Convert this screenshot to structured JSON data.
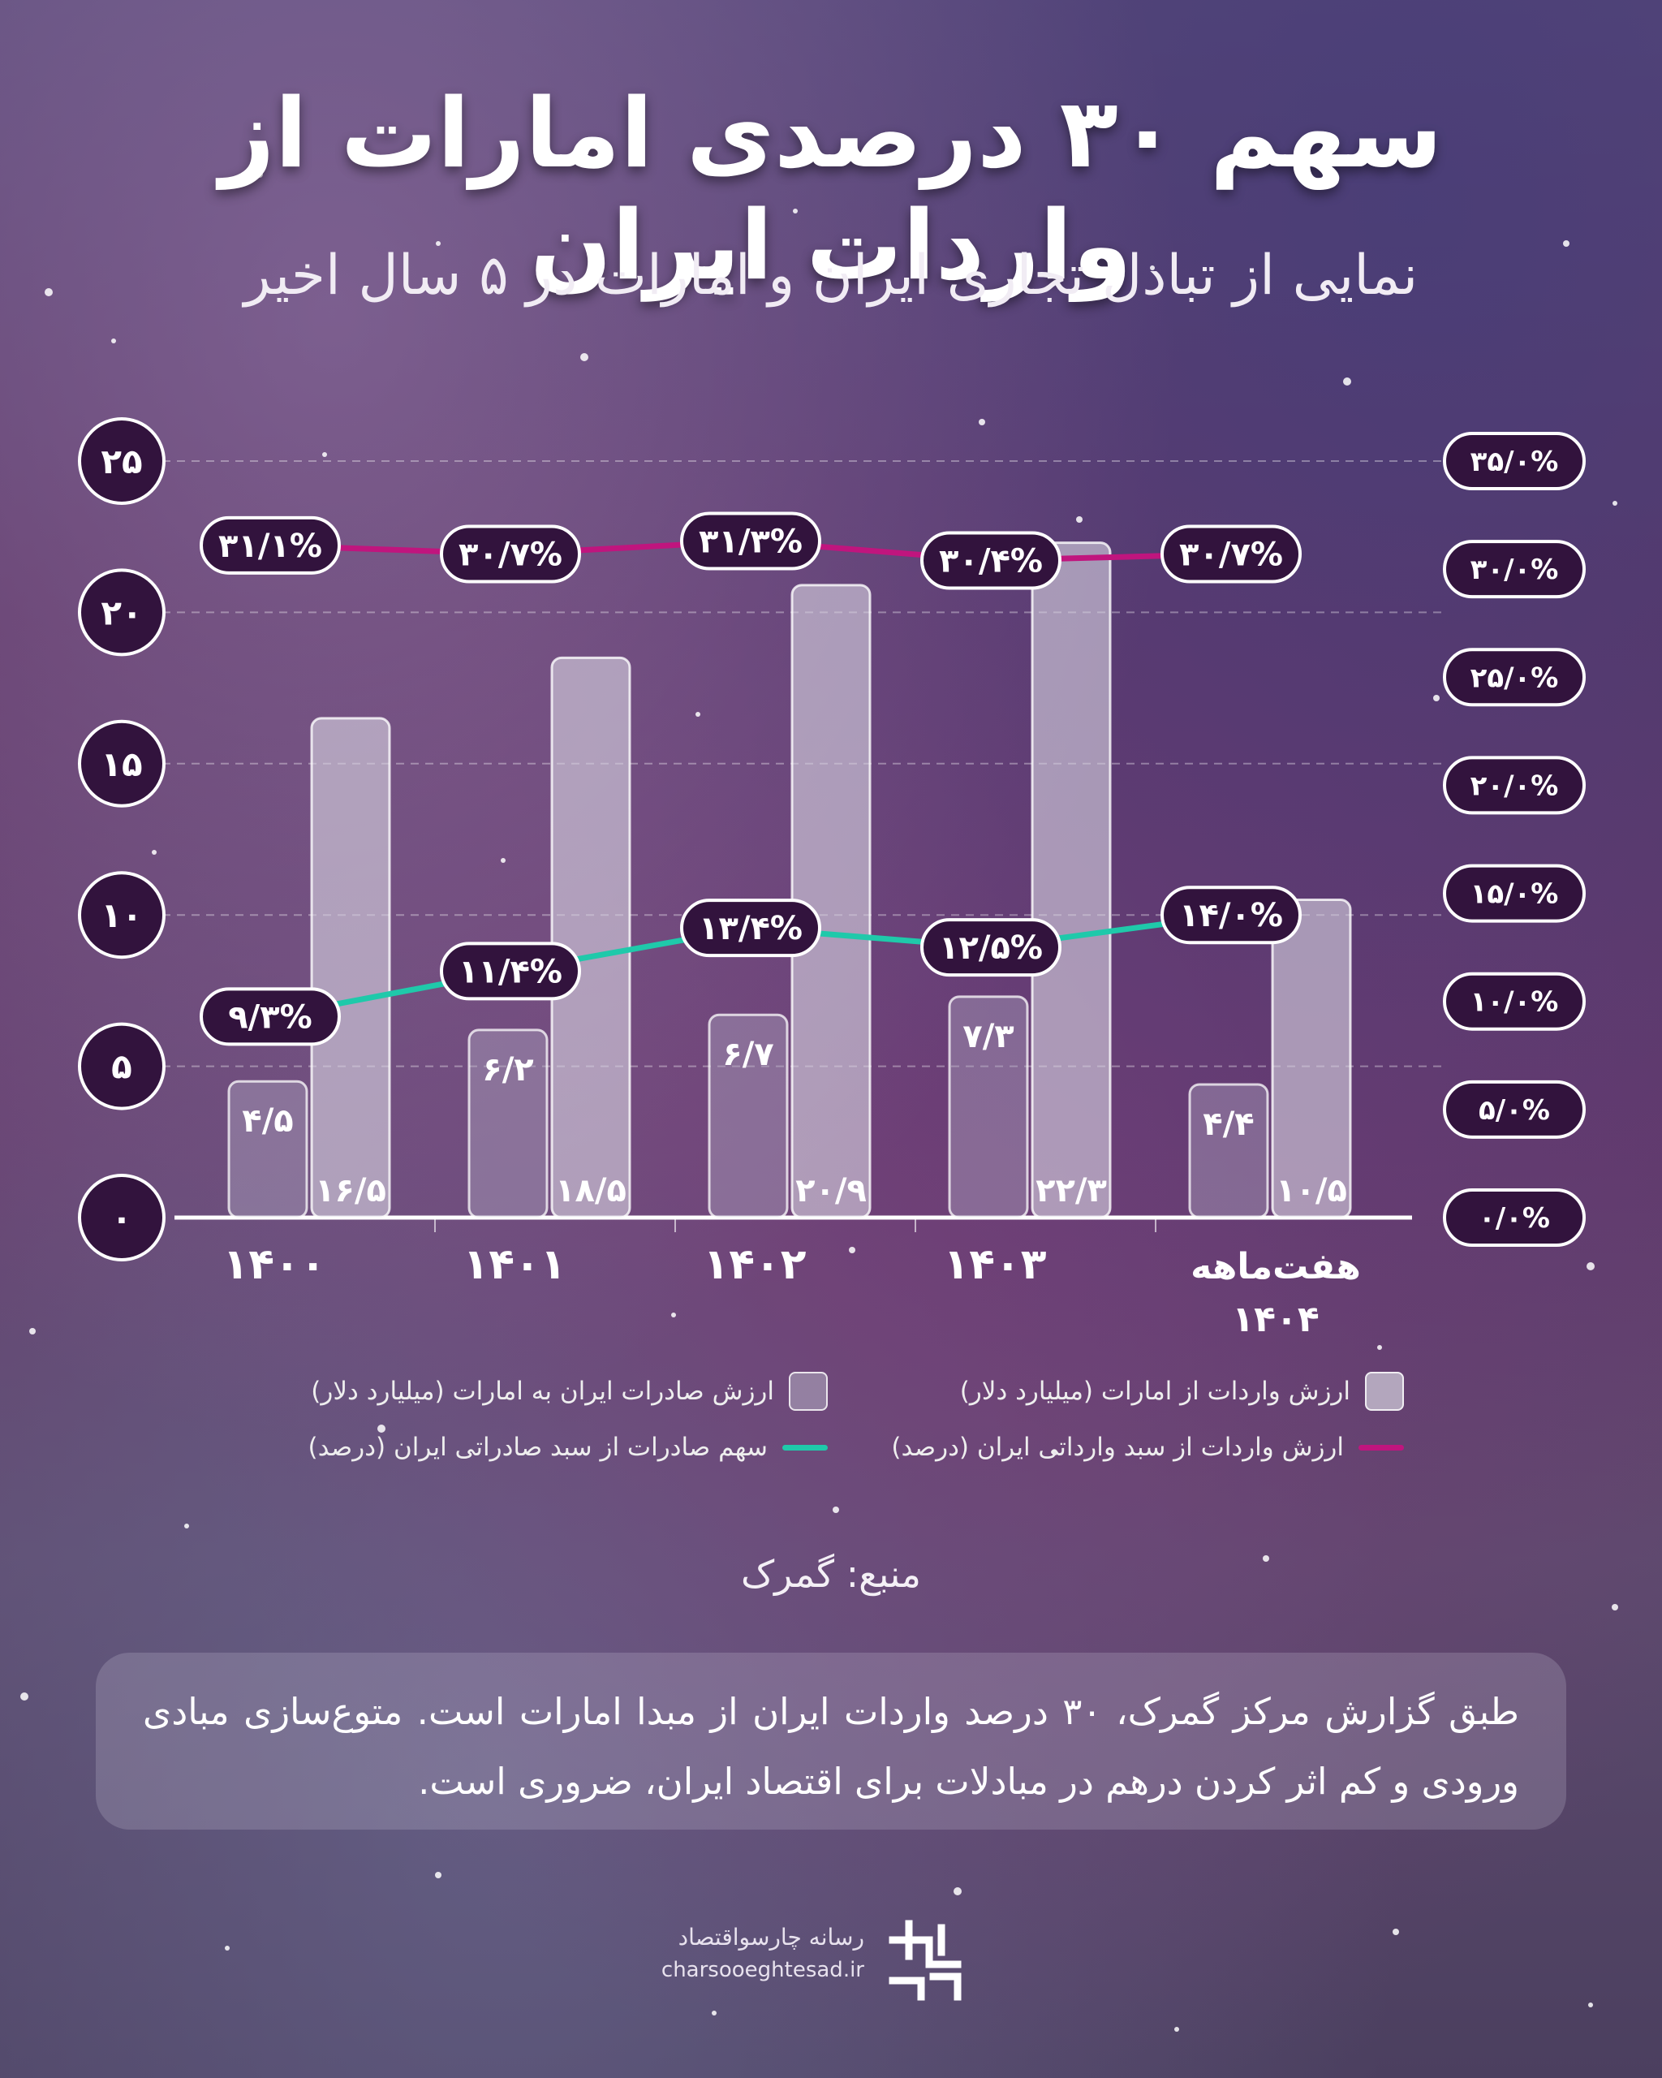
{
  "header": {
    "title": "سهم ۳۰ درصدی امارات از واردات ایران",
    "subtitle": "نمایی از تبادل تجاری ایران و امارات در ۵ سال اخیر"
  },
  "chart_data": {
    "type": "bar",
    "categories": [
      "۱۴۰۰",
      "۱۴۰۱",
      "۱۴۰۲",
      "۱۴۰۳",
      "هفت‌ماهه ۱۴۰۴"
    ],
    "left_axis_ticks": [
      "۰",
      "۵",
      "۱۰",
      "۱۵",
      "۲۰",
      "۲۵"
    ],
    "left_axis_range": [
      0,
      25
    ],
    "right_axis_ticks": [
      "۰/۰%",
      "۵/۰%",
      "۱۰/۰%",
      "۱۵/۰%",
      "۲۰/۰%",
      "۲۵/۰%",
      "۳۰/۰%",
      "۳۵/۰%"
    ],
    "right_axis_range": [
      0,
      35
    ],
    "grid": true,
    "series": [
      {
        "name": "ارزش صادرات ایران به امارات (میلیارد دلار)",
        "kind": "bar",
        "values": [
          4.5,
          6.2,
          6.7,
          7.3,
          4.4
        ],
        "labels": [
          "۴/۵",
          "۶/۲",
          "۶/۷",
          "۷/۳",
          "۴/۴"
        ]
      },
      {
        "name": "ارزش واردات از امارات (میلیارد دلار)",
        "kind": "bar",
        "values": [
          16.5,
          18.5,
          20.9,
          22.3,
          10.5
        ],
        "labels": [
          "۱۶/۵",
          "۱۸/۵",
          "۲۰/۹",
          "۲۲/۳",
          "۱۰/۵"
        ]
      },
      {
        "name": "سهم صادرات از سبد صادراتی ایران (درصد)",
        "kind": "line",
        "axis": "right",
        "color": "#1fc9aa",
        "values": [
          9.3,
          11.4,
          13.4,
          12.5,
          14.0
        ],
        "labels": [
          "۹/۳%",
          "۱۱/۴%",
          "۱۳/۴%",
          "۱۲/۵%",
          "۱۴/۰%"
        ]
      },
      {
        "name": "ارزش واردات از سبد وارداتی ایران (درصد)",
        "kind": "line",
        "axis": "right",
        "color": "#c0157e",
        "values": [
          31.1,
          30.7,
          31.3,
          30.4,
          30.7
        ],
        "labels": [
          "۳۱/۱%",
          "۳۰/۷%",
          "۳۱/۳%",
          "۳۰/۴%",
          "۳۰/۷%"
        ]
      }
    ],
    "legend_placement": "bottom"
  },
  "legend": {
    "exports_bar": "ارزش صادرات ایران به امارات (میلیارد دلار)",
    "imports_bar": "ارزش واردات از امارات (میلیارد دلار)",
    "exports_share": "سهم صادرات از سبد صادراتی ایران (درصد)",
    "imports_share": "ارزش واردات از سبد وارداتی ایران (درصد)"
  },
  "source": "منبع: گمرک",
  "note": "طبق گزارش مرکز گمرک، ۳۰ درصد واردات ایران از مبدا امارات است. متوع‌سازی مبادی ورودی و کم اثر کردن درهم در مبادلات برای اقتصاد ایران، ضروری است.",
  "brand": {
    "name": "رسانه چارسواقتصاد",
    "url": "charsooeghtesad.ir"
  },
  "colors": {
    "teal": "#1fc9aa",
    "magenta": "#c0157e",
    "badge": "#32133d"
  }
}
